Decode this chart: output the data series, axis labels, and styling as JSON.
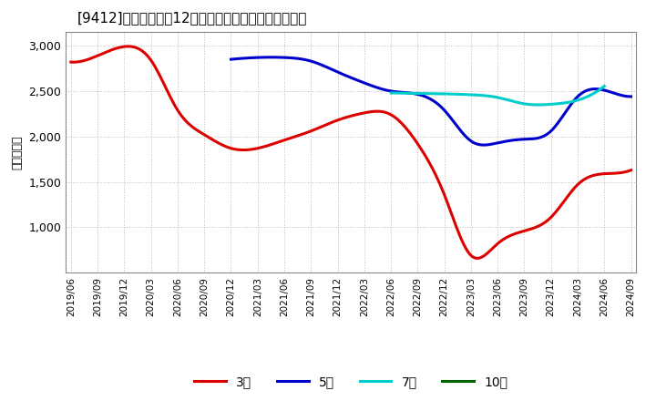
{
  "title": "[9412]　当期純利益12か月移動合計の標準偏差の推移",
  "ylabel": "（百万円）",
  "background_color": "#ffffff",
  "plot_bg_color": "#ffffff",
  "grid_color": "#bbbbbb",
  "ylim": [
    500,
    3150
  ],
  "yticks": [
    1000,
    1500,
    2000,
    2500,
    3000
  ],
  "series": {
    "3year": {
      "label": "3年",
      "color": "#dd0000",
      "x_idx": [
        0,
        1,
        2,
        3,
        4,
        5,
        6,
        7,
        8,
        9,
        10,
        11,
        12,
        13,
        14,
        15,
        16,
        17,
        18,
        19,
        20,
        21
      ],
      "y": [
        2820,
        2890,
        2990,
        2840,
        2290,
        2020,
        1870,
        1870,
        1960,
        2060,
        2180,
        2260,
        2240,
        1920,
        1360,
        690,
        820,
        960,
        1110,
        1470,
        1590,
        1630
      ]
    },
    "5year": {
      "label": "5年",
      "color": "#0000cc",
      "x_idx": [
        6,
        7,
        8,
        9,
        10,
        11,
        12,
        13,
        14,
        15,
        16,
        17,
        18,
        19,
        20,
        21
      ],
      "y": [
        2850,
        2870,
        2870,
        2830,
        2710,
        2590,
        2500,
        2465,
        2290,
        1950,
        1930,
        1970,
        2060,
        2440,
        2510,
        2440
      ]
    },
    "7year": {
      "label": "7年",
      "color": "#00cccc",
      "x_idx": [
        12,
        13,
        14,
        15,
        16,
        17,
        18,
        19,
        20
      ],
      "y": [
        2480,
        2475,
        2470,
        2460,
        2430,
        2360,
        2355,
        2400,
        2555
      ]
    },
    "10year": {
      "label": "10年",
      "color": "#006600",
      "x_idx": [],
      "y": []
    }
  },
  "x_labels": [
    "2019/06",
    "2019/09",
    "2019/12",
    "2020/03",
    "2020/06",
    "2020/09",
    "2020/12",
    "2021/03",
    "2021/06",
    "2021/09",
    "2021/12",
    "2022/03",
    "2022/06",
    "2022/09",
    "2022/12",
    "2023/03",
    "2023/06",
    "2023/09",
    "2023/12",
    "2024/03",
    "2024/06",
    "2024/09"
  ],
  "legend_items": [
    {
      "label": "3年",
      "color": "#dd0000"
    },
    {
      "label": "5年",
      "color": "#0000cc"
    },
    {
      "label": "7年",
      "color": "#00cccc"
    },
    {
      "label": "10年",
      "color": "#006600"
    }
  ]
}
